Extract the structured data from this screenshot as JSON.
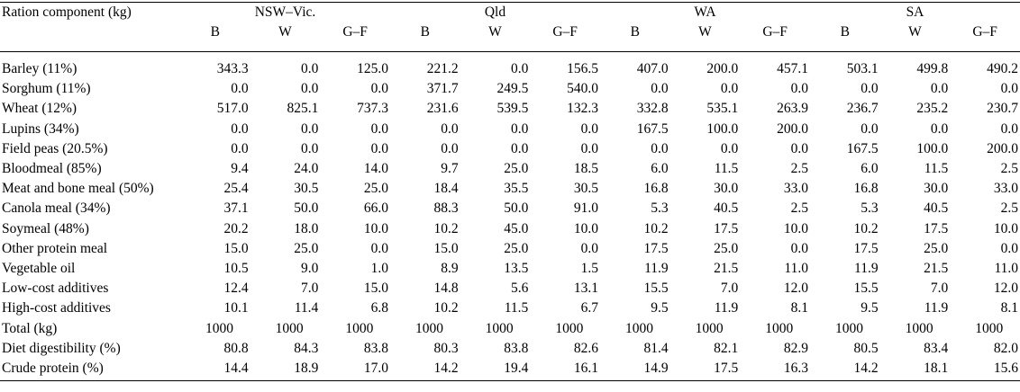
{
  "table": {
    "header_label": "Ration component (kg)",
    "regions": [
      "NSW–Vic.",
      "Qld",
      "WA",
      "SA"
    ],
    "subheaders": [
      "B",
      "W",
      "G–F",
      "B",
      "W",
      "G–F",
      "B",
      "W",
      "G–F",
      "B",
      "W",
      "G–F"
    ],
    "rows": [
      {
        "label": "Barley (11%)",
        "values": [
          "343.3",
          "0.0",
          "125.0",
          "221.2",
          "0.0",
          "156.5",
          "407.0",
          "200.0",
          "457.1",
          "503.1",
          "499.8",
          "490.2"
        ]
      },
      {
        "label": "Sorghum (11%)",
        "values": [
          "0.0",
          "0.0",
          "0.0",
          "371.7",
          "249.5",
          "540.0",
          "0.0",
          "0.0",
          "0.0",
          "0.0",
          "0.0",
          "0.0"
        ]
      },
      {
        "label": "Wheat (12%)",
        "values": [
          "517.0",
          "825.1",
          "737.3",
          "231.6",
          "539.5",
          "132.3",
          "332.8",
          "535.1",
          "263.9",
          "236.7",
          "235.2",
          "230.7"
        ]
      },
      {
        "label": "Lupins (34%)",
        "values": [
          "0.0",
          "0.0",
          "0.0",
          "0.0",
          "0.0",
          "0.0",
          "167.5",
          "100.0",
          "200.0",
          "0.0",
          "0.0",
          "0.0"
        ]
      },
      {
        "label": "Field peas (20.5%)",
        "values": [
          "0.0",
          "0.0",
          "0.0",
          "0.0",
          "0.0",
          "0.0",
          "0.0",
          "0.0",
          "0.0",
          "167.5",
          "100.0",
          "200.0"
        ]
      },
      {
        "label": "Bloodmeal (85%)",
        "values": [
          "9.4",
          "24.0",
          "14.0",
          "9.7",
          "25.0",
          "18.5",
          "6.0",
          "11.5",
          "2.5",
          "6.0",
          "11.5",
          "2.5"
        ]
      },
      {
        "label": "Meat and bone meal (50%)",
        "values": [
          "25.4",
          "30.5",
          "25.0",
          "18.4",
          "35.5",
          "30.5",
          "16.8",
          "30.0",
          "33.0",
          "16.8",
          "30.0",
          "33.0"
        ]
      },
      {
        "label": "Canola meal (34%)",
        "values": [
          "37.1",
          "50.0",
          "66.0",
          "88.3",
          "50.0",
          "91.0",
          "5.3",
          "40.5",
          "2.5",
          "5.3",
          "40.5",
          "2.5"
        ]
      },
      {
        "label": "Soymeal (48%)",
        "values": [
          "20.2",
          "18.0",
          "10.0",
          "10.2",
          "45.0",
          "10.0",
          "10.2",
          "17.5",
          "10.0",
          "10.2",
          "17.5",
          "10.0"
        ]
      },
      {
        "label": "Other protein meal",
        "values": [
          "15.0",
          "25.0",
          "0.0",
          "15.0",
          "25.0",
          "0.0",
          "17.5",
          "25.0",
          "0.0",
          "17.5",
          "25.0",
          "0.0"
        ]
      },
      {
        "label": "Vegetable oil",
        "values": [
          "10.5",
          "9.0",
          "1.0",
          "8.9",
          "13.5",
          "1.5",
          "11.9",
          "21.5",
          "11.0",
          "11.9",
          "21.5",
          "11.0"
        ]
      },
      {
        "label": "Low-cost additives",
        "values": [
          "12.4",
          "7.0",
          "15.0",
          "14.8",
          "5.6",
          "13.1",
          "15.5",
          "7.0",
          "12.0",
          "15.5",
          "7.0",
          "12.0"
        ]
      },
      {
        "label": "High-cost additives",
        "values": [
          "10.1",
          "11.4",
          "6.8",
          "10.2",
          "11.5",
          "6.7",
          "9.5",
          "11.9",
          "8.1",
          "9.5",
          "11.9",
          "8.1"
        ]
      }
    ],
    "total_row": {
      "label": "Total (kg)",
      "values": [
        "1000",
        "1000",
        "1000",
        "1000",
        "1000",
        "1000",
        "1000",
        "1000",
        "1000",
        "1000",
        "1000",
        "1000"
      ]
    },
    "summary_rows": [
      {
        "label": "Diet digestibility (%)",
        "values": [
          "80.8",
          "84.3",
          "83.8",
          "80.3",
          "83.8",
          "82.6",
          "81.4",
          "82.1",
          "82.9",
          "80.5",
          "83.4",
          "82.0"
        ]
      },
      {
        "label": "Crude protein (%)",
        "values": [
          "14.4",
          "18.9",
          "17.0",
          "14.2",
          "19.4",
          "16.1",
          "14.9",
          "17.5",
          "16.3",
          "14.2",
          "18.1",
          "15.6"
        ]
      }
    ]
  }
}
